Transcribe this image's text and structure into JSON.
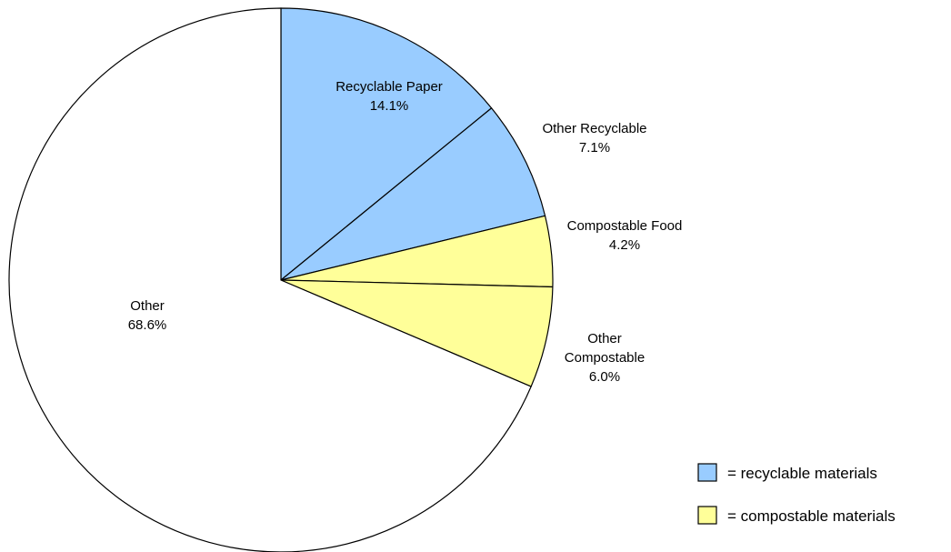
{
  "chart_data": {
    "type": "pie",
    "title": "",
    "slices": [
      {
        "label": "Recyclable Paper",
        "label_lines": [
          "Recyclable Paper"
        ],
        "value": 14.1,
        "value_text": "14.1%",
        "color": "#99ccff"
      },
      {
        "label": "Other Recyclable",
        "label_lines": [
          "Other Recyclable"
        ],
        "value": 7.1,
        "value_text": "7.1%",
        "color": "#99ccff"
      },
      {
        "label": "Compostable Food",
        "label_lines": [
          "Compostable Food"
        ],
        "value": 4.2,
        "value_text": "4.2%",
        "color": "#ffff99"
      },
      {
        "label": "Other Compostable",
        "label_lines": [
          "Other",
          "Compostable"
        ],
        "value": 6.0,
        "value_text": "6.0%",
        "color": "#ffff99"
      },
      {
        "label": "Other",
        "label_lines": [
          "Other"
        ],
        "value": 68.6,
        "value_text": "68.6%",
        "color": "#ffffff"
      }
    ],
    "legend": {
      "placement": "bottom-right",
      "entries": [
        {
          "text": "= recyclable materials",
          "color": "#99ccff"
        },
        {
          "text": "= compostable materials",
          "color": "#ffff99"
        }
      ]
    }
  }
}
